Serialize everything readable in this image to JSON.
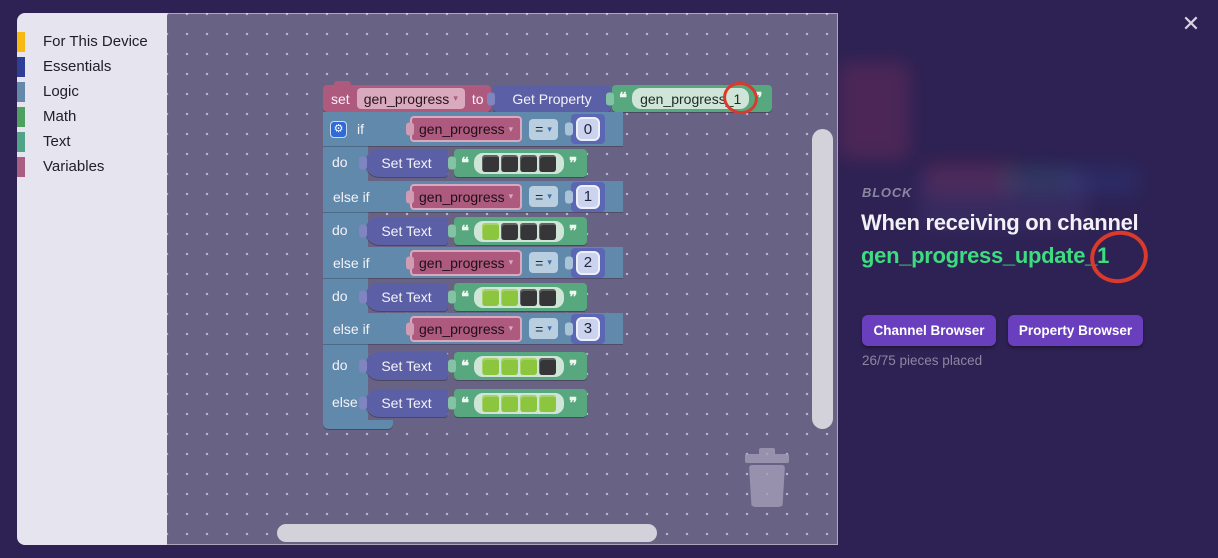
{
  "close_icon": "✕",
  "sidebar": {
    "items": [
      {
        "label": "For This Device",
        "color": "#f7b912"
      },
      {
        "label": "Essentials",
        "color": "#2f3d96"
      },
      {
        "label": "Logic",
        "color": "#6589ab"
      },
      {
        "label": "Math",
        "color": "#4fa05f"
      },
      {
        "label": "Text",
        "color": "#52a489"
      },
      {
        "label": "Variables",
        "color": "#aa5c81"
      }
    ]
  },
  "workspace": {
    "icons": {
      "gear": "⚙",
      "dropdown": "▾",
      "quote_open": "❝",
      "quote_close": "❞"
    },
    "colors": {
      "square_on": "#8cc63f",
      "square_off": "#363538"
    },
    "set_block": {
      "keyword": "set",
      "variable": "gen_progress",
      "to": "to"
    },
    "get_property": {
      "label": "Get Property"
    },
    "property_string": "gen_progress_1",
    "if_block": {
      "if": "if",
      "do": "do",
      "else_if": "else if",
      "else": "else",
      "set_text": "Set Text",
      "branches": [
        {
          "var": "gen_progress",
          "op": "=",
          "value": "0",
          "squares": [
            0,
            0,
            0,
            0
          ]
        },
        {
          "var": "gen_progress",
          "op": "=",
          "value": "1",
          "squares": [
            1,
            0,
            0,
            0
          ]
        },
        {
          "var": "gen_progress",
          "op": "=",
          "value": "2",
          "squares": [
            1,
            1,
            0,
            0
          ]
        },
        {
          "var": "gen_progress",
          "op": "=",
          "value": "3",
          "squares": [
            1,
            1,
            1,
            0
          ]
        }
      ],
      "else_squares": [
        1,
        1,
        1,
        1
      ]
    }
  },
  "inspector": {
    "section_label": "BLOCK",
    "title": "When receiving on channel",
    "channel": "gen_progress_update_1",
    "buttons": [
      {
        "label": "Channel Browser"
      },
      {
        "label": "Property Browser"
      }
    ],
    "status": "26/75 pieces placed",
    "accent_green": "#3ddc7f",
    "annotation_color": "#d93a2c"
  }
}
